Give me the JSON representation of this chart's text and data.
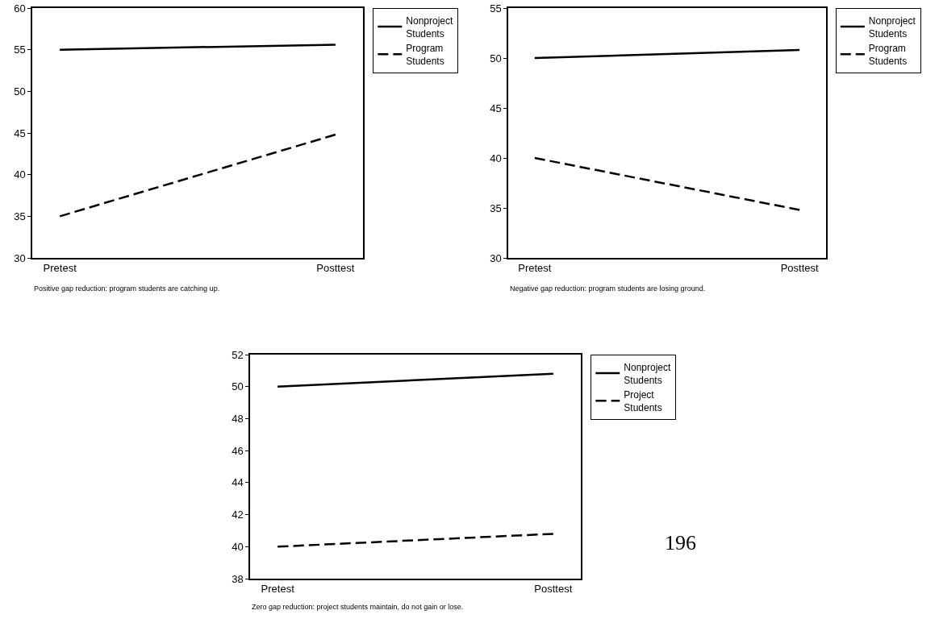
{
  "chart_data": [
    {
      "type": "line",
      "categories": [
        "Pretest",
        "Posttest"
      ],
      "series": [
        {
          "name": "Nonproject Students",
          "color": "#000000",
          "values": [
            55,
            55.6
          ],
          "line_style": "solid"
        },
        {
          "name": "Program Students",
          "color": "#000000",
          "values": [
            35,
            44.8
          ],
          "line_style": "dashed"
        }
      ],
      "ylim": [
        30,
        60
      ],
      "yticks": [
        30,
        35,
        40,
        45,
        50,
        55,
        60
      ],
      "legend": "right",
      "grid": false,
      "marker": "none",
      "annotations": [
        "Positive gap reduction: program students are catching up."
      ]
    },
    {
      "type": "line",
      "categories": [
        "Pretest",
        "Posttest"
      ],
      "series": [
        {
          "name": "Nonproject Students",
          "color": "#000000",
          "values": [
            50,
            50.8
          ],
          "line_style": "solid"
        },
        {
          "name": "Program Students",
          "color": "#000000",
          "values": [
            40,
            34.8
          ],
          "line_style": "dashed"
        }
      ],
      "ylim": [
        30,
        55
      ],
      "yticks": [
        30,
        35,
        40,
        45,
        50,
        55
      ],
      "legend": "right",
      "grid": false,
      "marker": "none",
      "annotations": [
        "Negative gap reduction: program students are losing ground."
      ]
    },
    {
      "type": "line",
      "categories": [
        "Pretest",
        "Posttest"
      ],
      "series": [
        {
          "name": "Nonproject Students",
          "color": "#000000",
          "values": [
            50,
            50.8
          ],
          "line_style": "solid"
        },
        {
          "name": "Project Students",
          "color": "#000000",
          "values": [
            40,
            40.8
          ],
          "line_style": "dashed"
        }
      ],
      "ylim": [
        38,
        52
      ],
      "yticks": [
        38,
        40,
        42,
        44,
        46,
        48,
        50,
        52
      ],
      "legend": "right",
      "grid": false,
      "marker": "none",
      "annotations": [
        "Zero gap reduction: project students maintain, do not gain or lose.",
        "196"
      ]
    }
  ]
}
